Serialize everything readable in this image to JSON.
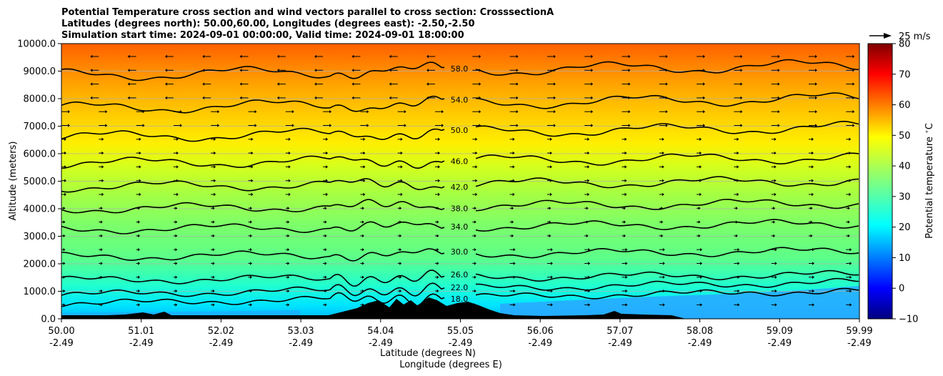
{
  "chart_data": {
    "type": "heatmap",
    "title_lines": [
      "Potential Temperature cross section and wind vectors parallel to cross section: CrosssectionA",
      "Latitudes (degrees north): 50.00,60.00, Longitudes (degrees east): -2.50,-2.50",
      "Simulation start time: 2024-09-01 00:00:00, Valid time: 2024-09-01 18:00:00"
    ],
    "xlabel_lines": [
      "Latitude (degrees N)",
      "Longitude (degrees E)"
    ],
    "ylabel": "Altitude (meters)",
    "x_ticks": [
      {
        "lat": "50.00",
        "lon": "-2.49"
      },
      {
        "lat": "51.01",
        "lon": "-2.49"
      },
      {
        "lat": "52.02",
        "lon": "-2.49"
      },
      {
        "lat": "53.03",
        "lon": "-2.49"
      },
      {
        "lat": "54.04",
        "lon": "-2.49"
      },
      {
        "lat": "55.05",
        "lon": "-2.49"
      },
      {
        "lat": "56.06",
        "lon": "-2.49"
      },
      {
        "lat": "57.07",
        "lon": "-2.49"
      },
      {
        "lat": "58.08",
        "lon": "-2.49"
      },
      {
        "lat": "59.09",
        "lon": "-2.49"
      },
      {
        "lat": "59.99",
        "lon": "-2.49"
      }
    ],
    "xlim": [
      50.0,
      59.99
    ],
    "y_ticks": [
      "0.0",
      "1000.0",
      "2000.0",
      "3000.0",
      "4000.0",
      "5000.0",
      "6000.0",
      "7000.0",
      "8000.0",
      "9000.0",
      "10000.0"
    ],
    "ylim": [
      0,
      10000
    ],
    "grid": "horizontal",
    "colorbar": {
      "label": "Potential temperature $^\\circ$C",
      "range": [
        -10,
        80
      ],
      "ticks": [
        "−10",
        "0",
        "10",
        "20",
        "30",
        "40",
        "50",
        "60",
        "70",
        "80"
      ],
      "colormap": "jet"
    },
    "quiver_key": "25 m/s",
    "contours": [
      {
        "level": 18,
        "label": "18.0",
        "z": 550
      },
      {
        "level": 22,
        "label": "22.0",
        "z": 870
      },
      {
        "level": 26,
        "label": "26.0",
        "z": 1400
      },
      {
        "level": 30,
        "label": "30.0",
        "z": 2250
      },
      {
        "level": 34,
        "label": "34.0",
        "z": 3250
      },
      {
        "level": 38,
        "label": "38.0",
        "z": 4000
      },
      {
        "level": 42,
        "label": "42.0",
        "z": 4800
      },
      {
        "level": 46,
        "label": "46.0",
        "z": 5650
      },
      {
        "level": 50,
        "label": "50.0",
        "z": 6600
      },
      {
        "level": 54,
        "label": "54.0",
        "z": 7650
      },
      {
        "level": 58,
        "label": "58.0",
        "z": 8850
      }
    ]
  }
}
